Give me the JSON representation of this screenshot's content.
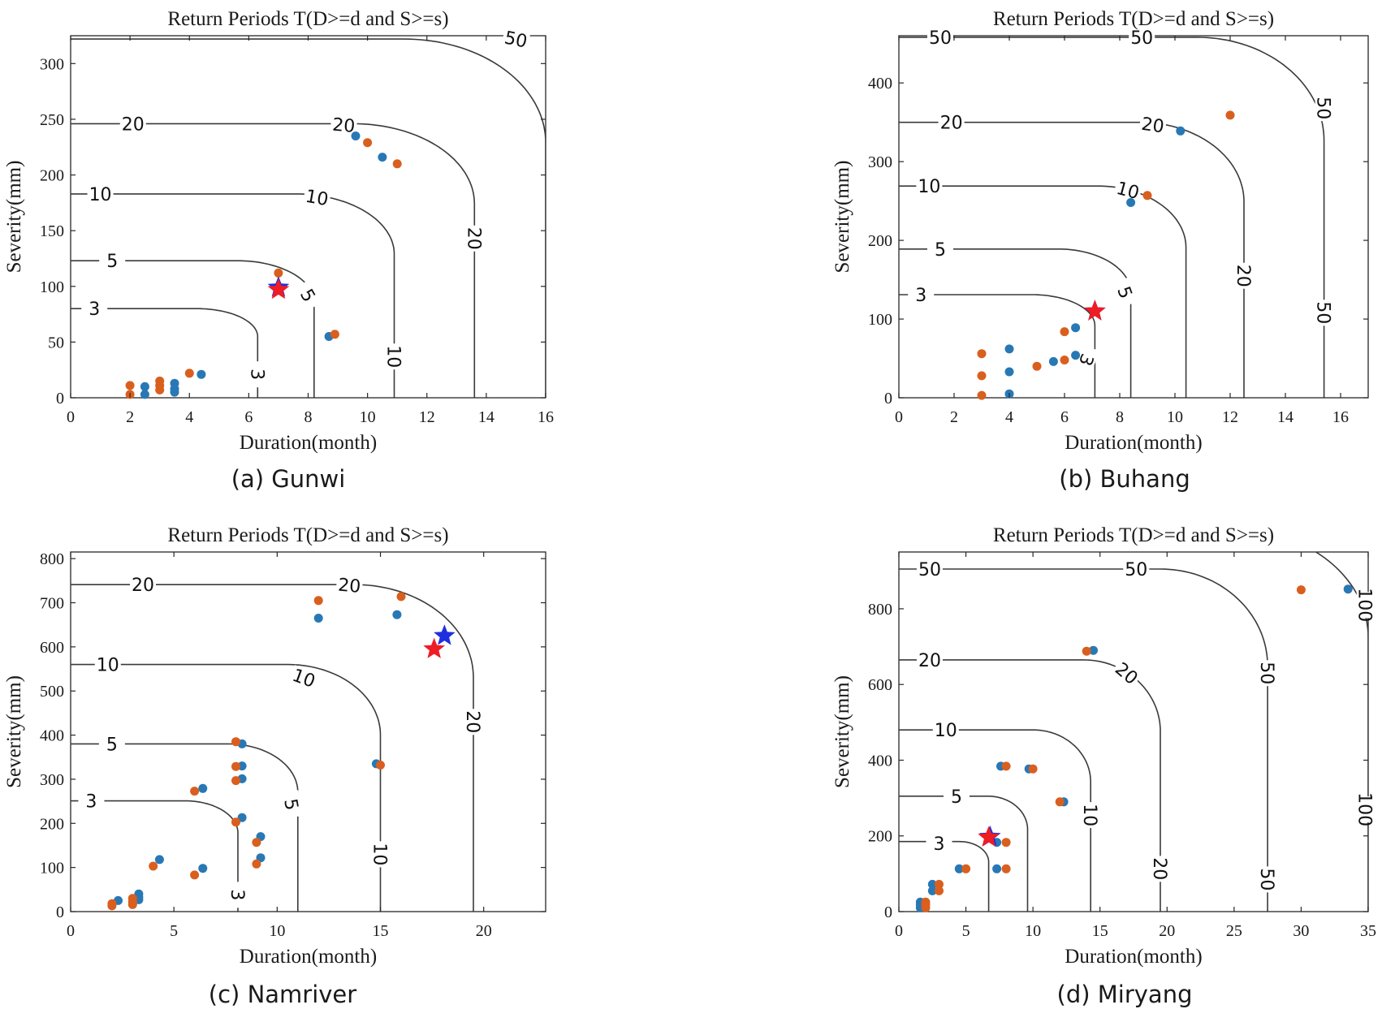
{
  "chart_data": [
    {
      "type": "scatter",
      "caption": "(a) Gunwi",
      "title": "Return Periods T(D>=d and S>=s)",
      "xlabel": "Duration(month)",
      "ylabel": "Severity(mm)",
      "xlim": [
        0,
        16
      ],
      "ylim": [
        0,
        325
      ],
      "xticks": [
        0,
        2,
        4,
        6,
        8,
        10,
        12,
        14,
        16
      ],
      "yticks": [
        0,
        50,
        100,
        150,
        200,
        250,
        300
      ],
      "series_colors": [
        "#2878b5",
        "#d95f1e"
      ],
      "series": [
        {
          "points": [
            [
              2.5,
              10
            ],
            [
              2.5,
              3
            ],
            [
              3.5,
              13
            ],
            [
              3.5,
              8
            ],
            [
              3.5,
              5
            ],
            [
              4.4,
              21
            ],
            [
              8.7,
              55
            ],
            [
              9.6,
              235
            ],
            [
              10.5,
              216
            ]
          ]
        },
        {
          "points": [
            [
              2,
              11
            ],
            [
              2,
              3
            ],
            [
              3,
              15
            ],
            [
              3,
              11
            ],
            [
              3,
              7
            ],
            [
              4,
              22
            ],
            [
              7,
              112
            ],
            [
              8.9,
              57
            ],
            [
              10,
              229
            ],
            [
              11,
              210
            ]
          ]
        }
      ],
      "stars": [
        {
          "color": "#1f2fe0",
          "x": 7,
          "y": 99
        },
        {
          "color": "#ee1c25",
          "x": 7,
          "y": 97
        }
      ],
      "contours": [
        {
          "label": "3",
          "dc": 6.3,
          "sc": 80
        },
        {
          "label": "5",
          "dc": 8.2,
          "sc": 123
        },
        {
          "label": "10",
          "dc": 10.9,
          "sc": 183
        },
        {
          "label": "20",
          "dc": 13.6,
          "sc": 246
        },
        {
          "label": "50",
          "dc": 16.0,
          "sc": 322
        }
      ],
      "contour_labels": [
        {
          "text": "3",
          "x": 0.8,
          "y": 80,
          "rot": 0
        },
        {
          "text": "3",
          "x": 6.3,
          "y": 21,
          "rot": 90
        },
        {
          "text": "5",
          "x": 1.4,
          "y": 123,
          "rot": 0
        },
        {
          "text": "5",
          "x": 8.0,
          "y": 92,
          "rot": 60
        },
        {
          "text": "10",
          "x": 1.0,
          "y": 183,
          "rot": 0
        },
        {
          "text": "10",
          "x": 8.3,
          "y": 180,
          "rot": 10
        },
        {
          "text": "10",
          "x": 10.9,
          "y": 37,
          "rot": 90
        },
        {
          "text": "20",
          "x": 2.1,
          "y": 246,
          "rot": 0
        },
        {
          "text": "20",
          "x": 9.2,
          "y": 245,
          "rot": 5
        },
        {
          "text": "20",
          "x": 13.6,
          "y": 143,
          "rot": 90
        },
        {
          "text": "50",
          "x": 15.0,
          "y": 322,
          "rot": 12
        }
      ]
    },
    {
      "type": "scatter",
      "caption": "(b) Buhang",
      "title": "Return Periods T(D>=d and S>=s)",
      "xlabel": "Duration(month)",
      "ylabel": "Severity(mm)",
      "xlim": [
        0,
        17
      ],
      "ylim": [
        0,
        460
      ],
      "xticks": [
        0,
        2,
        4,
        6,
        8,
        10,
        12,
        14,
        16
      ],
      "yticks": [
        0,
        100,
        200,
        300,
        400
      ],
      "series_colors": [
        "#2878b5",
        "#d95f1e"
      ],
      "series": [
        {
          "points": [
            [
              4,
              62
            ],
            [
              4,
              33
            ],
            [
              4,
              5
            ],
            [
              5.6,
              46
            ],
            [
              6.4,
              89
            ],
            [
              6.4,
              54
            ],
            [
              8.4,
              248
            ],
            [
              10.2,
              339
            ]
          ]
        },
        {
          "points": [
            [
              3,
              56
            ],
            [
              3,
              28
            ],
            [
              3,
              3
            ],
            [
              5,
              40
            ],
            [
              6,
              84
            ],
            [
              6,
              48
            ],
            [
              9,
              257
            ],
            [
              12,
              359
            ]
          ]
        }
      ],
      "stars": [
        {
          "color": "#1f2fe0",
          "x": 7.1,
          "y": 110
        },
        {
          "color": "#ee1c25",
          "x": 7.1,
          "y": 110
        }
      ],
      "contours": [
        {
          "label": "3",
          "dc": 7.1,
          "sc": 131
        },
        {
          "label": "5",
          "dc": 8.4,
          "sc": 189
        },
        {
          "label": "10",
          "dc": 10.4,
          "sc": 269
        },
        {
          "label": "20",
          "dc": 12.5,
          "sc": 350
        },
        {
          "label": "50",
          "dc": 15.4,
          "sc": 458
        }
      ],
      "contour_labels": [
        {
          "text": "3",
          "x": 0.8,
          "y": 131,
          "rot": 0
        },
        {
          "text": "3",
          "x": 6.8,
          "y": 48,
          "rot": 110
        },
        {
          "text": "5",
          "x": 1.5,
          "y": 189,
          "rot": 0
        },
        {
          "text": "5",
          "x": 8.2,
          "y": 134,
          "rot": 70
        },
        {
          "text": "10",
          "x": 1.1,
          "y": 269,
          "rot": 0
        },
        {
          "text": "10",
          "x": 8.3,
          "y": 264,
          "rot": 15
        },
        {
          "text": "20",
          "x": 1.9,
          "y": 350,
          "rot": 0
        },
        {
          "text": "20",
          "x": 9.2,
          "y": 347,
          "rot": 8
        },
        {
          "text": "20",
          "x": 12.5,
          "y": 155,
          "rot": 90
        },
        {
          "text": "50",
          "x": 1.5,
          "y": 458,
          "rot": 0
        },
        {
          "text": "50",
          "x": 8.8,
          "y": 458,
          "rot": 0
        },
        {
          "text": "50",
          "x": 15.4,
          "y": 368,
          "rot": 90
        },
        {
          "text": "50",
          "x": 15.4,
          "y": 108,
          "rot": 90
        }
      ]
    },
    {
      "type": "scatter",
      "caption": "(c) Namriver",
      "title": "Return Periods T(D>=d and S>=s)",
      "xlabel": "Duration(month)",
      "ylabel": "Severity(mm)",
      "xlim": [
        0,
        23
      ],
      "ylim": [
        0,
        815
      ],
      "xticks": [
        0,
        5,
        10,
        15,
        20
      ],
      "yticks": [
        0,
        100,
        200,
        300,
        400,
        500,
        600,
        700,
        800
      ],
      "series_colors": [
        "#2878b5",
        "#d95f1e"
      ],
      "series": [
        {
          "points": [
            [
              2.3,
              25
            ],
            [
              3.3,
              40
            ],
            [
              3.3,
              33
            ],
            [
              3.3,
              27
            ],
            [
              4.3,
              118
            ],
            [
              6.4,
              98
            ],
            [
              6.4,
              279
            ],
            [
              8.3,
              380
            ],
            [
              8.3,
              330
            ],
            [
              8.3,
              301
            ],
            [
              8.3,
              213
            ],
            [
              9.2,
              170
            ],
            [
              9.2,
              122
            ],
            [
              12,
              665
            ],
            [
              14.8,
              335
            ],
            [
              15.8,
              673
            ]
          ]
        },
        {
          "points": [
            [
              2,
              18
            ],
            [
              2,
              13
            ],
            [
              3,
              30
            ],
            [
              3,
              22
            ],
            [
              3,
              16
            ],
            [
              4,
              103
            ],
            [
              6,
              83
            ],
            [
              6,
              273
            ],
            [
              8,
              385
            ],
            [
              8,
              329
            ],
            [
              8,
              297
            ],
            [
              8,
              203
            ],
            [
              9,
              157
            ],
            [
              9,
              108
            ],
            [
              12,
              705
            ],
            [
              15,
              332
            ],
            [
              16,
              714
            ]
          ]
        }
      ],
      "stars": [
        {
          "color": "#1f2fe0",
          "x": 18.1,
          "y": 625
        },
        {
          "color": "#ee1c25",
          "x": 17.6,
          "y": 595
        }
      ],
      "contours": [
        {
          "label": "3",
          "dc": 8.1,
          "sc": 251
        },
        {
          "label": "5",
          "dc": 11.0,
          "sc": 380
        },
        {
          "label": "10",
          "dc": 15.0,
          "sc": 560
        },
        {
          "label": "20",
          "dc": 19.5,
          "sc": 741
        }
      ],
      "contour_labels": [
        {
          "text": "3",
          "x": 1.0,
          "y": 251,
          "rot": 0
        },
        {
          "text": "3",
          "x": 8.1,
          "y": 38,
          "rot": 90
        },
        {
          "text": "5",
          "x": 2.0,
          "y": 380,
          "rot": 0
        },
        {
          "text": "5",
          "x": 10.7,
          "y": 243,
          "rot": 80
        },
        {
          "text": "10",
          "x": 1.8,
          "y": 560,
          "rot": 0
        },
        {
          "text": "10",
          "x": 11.3,
          "y": 530,
          "rot": 20
        },
        {
          "text": "10",
          "x": 15.0,
          "y": 130,
          "rot": 90
        },
        {
          "text": "20",
          "x": 3.5,
          "y": 741,
          "rot": 0
        },
        {
          "text": "20",
          "x": 13.5,
          "y": 740,
          "rot": 5
        },
        {
          "text": "20",
          "x": 19.5,
          "y": 430,
          "rot": 90
        }
      ]
    },
    {
      "type": "scatter",
      "caption": "(d) Miryang",
      "title": "Return Periods T(D>=d and S>=s)",
      "xlabel": "Duration(month)",
      "ylabel": "Severity(mm)",
      "xlim": [
        0,
        35
      ],
      "ylim": [
        0,
        950
      ],
      "xticks": [
        0,
        5,
        10,
        15,
        20,
        25,
        30,
        35
      ],
      "yticks": [
        0,
        200,
        400,
        600,
        800
      ],
      "series_colors": [
        "#2878b5",
        "#d95f1e"
      ],
      "series": [
        {
          "points": [
            [
              1.6,
              25
            ],
            [
              1.6,
              18
            ],
            [
              1.6,
              10
            ],
            [
              2.5,
              72
            ],
            [
              2.5,
              55
            ],
            [
              4.5,
              113
            ],
            [
              7.3,
              113
            ],
            [
              7.3,
              183
            ],
            [
              7.6,
              384
            ],
            [
              9.7,
              377
            ],
            [
              12.3,
              290
            ],
            [
              14.5,
              690
            ],
            [
              33.5,
              852
            ]
          ]
        },
        {
          "points": [
            [
              2,
              25
            ],
            [
              2,
              18
            ],
            [
              2,
              10
            ],
            [
              3,
              72
            ],
            [
              3,
              55
            ],
            [
              5,
              113
            ],
            [
              8,
              113
            ],
            [
              8,
              183
            ],
            [
              8,
              384
            ],
            [
              10,
              377
            ],
            [
              12,
              290
            ],
            [
              14,
              688
            ],
            [
              30,
              850
            ]
          ]
        }
      ],
      "stars": [
        {
          "color": "#1f2fe0",
          "x": 6.8,
          "y": 198
        },
        {
          "color": "#ee1c25",
          "x": 6.7,
          "y": 196
        }
      ],
      "contours": [
        {
          "label": "3",
          "dc": 6.7,
          "sc": 185
        },
        {
          "label": "5",
          "dc": 9.6,
          "sc": 305
        },
        {
          "label": "10",
          "dc": 14.3,
          "sc": 480
        },
        {
          "label": "20",
          "dc": 19.5,
          "sc": 665
        },
        {
          "label": "50",
          "dc": 27.5,
          "sc": 905
        },
        {
          "label": "100",
          "dc": 35.0,
          "sc": 1010
        }
      ],
      "contour_labels": [
        {
          "text": "3",
          "x": 3.0,
          "y": 180,
          "rot": 0
        },
        {
          "text": "5",
          "x": 4.3,
          "y": 305,
          "rot": 0
        },
        {
          "text": "10",
          "x": 3.5,
          "y": 480,
          "rot": 0
        },
        {
          "text": "10",
          "x": 14.3,
          "y": 255,
          "rot": 90
        },
        {
          "text": "20",
          "x": 2.3,
          "y": 665,
          "rot": 0
        },
        {
          "text": "20",
          "x": 17.0,
          "y": 630,
          "rot": 40
        },
        {
          "text": "20",
          "x": 19.5,
          "y": 113,
          "rot": 90
        },
        {
          "text": "50",
          "x": 2.3,
          "y": 905,
          "rot": 0
        },
        {
          "text": "50",
          "x": 17.7,
          "y": 905,
          "rot": 0
        },
        {
          "text": "50",
          "x": 27.5,
          "y": 630,
          "rot": 90
        },
        {
          "text": "50",
          "x": 27.5,
          "y": 85,
          "rot": 90
        },
        {
          "text": "100",
          "x": 34.8,
          "y": 810,
          "rot": 90
        },
        {
          "text": "100",
          "x": 34.8,
          "y": 270,
          "rot": 90
        }
      ]
    }
  ]
}
